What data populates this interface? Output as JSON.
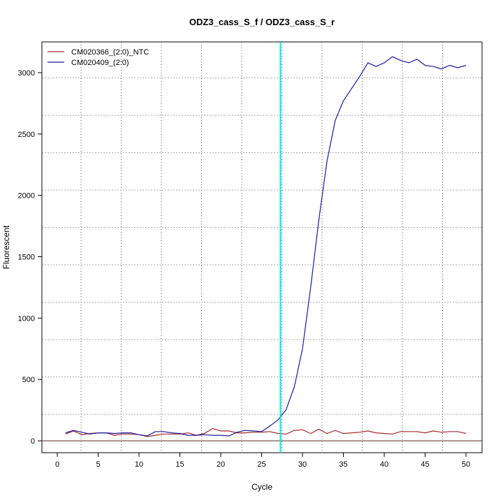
{
  "chart_data": {
    "type": "line",
    "title": "ODZ3_cass_S_f / ODZ3_cass_S_r",
    "xlabel": "Cycle",
    "ylabel": "Fluorescent",
    "xlim": [
      -2,
      52
    ],
    "ylim": [
      -90,
      3240
    ],
    "xticks": [
      0,
      5,
      10,
      15,
      20,
      25,
      30,
      35,
      40,
      45,
      50
    ],
    "yticks": [
      0,
      500,
      1000,
      1500,
      2000,
      2500,
      3000
    ],
    "grid": true,
    "legend_position": "top-left",
    "threshold_cycle": 27.3,
    "threshold_color": "#00e5ee",
    "baseline_value": 0,
    "x": [
      1,
      2,
      3,
      4,
      5,
      6,
      7,
      8,
      9,
      10,
      11,
      12,
      13,
      14,
      15,
      16,
      17,
      18,
      19,
      20,
      21,
      22,
      23,
      24,
      25,
      26,
      27,
      28,
      29,
      30,
      31,
      32,
      33,
      34,
      35,
      36,
      37,
      38,
      39,
      40,
      41,
      42,
      43,
      44,
      45,
      46,
      47,
      48,
      49,
      50
    ],
    "series": [
      {
        "name": "CM020366_(2:0)_NTC",
        "color": "#a52a2a",
        "values": [
          55,
          80,
          50,
          60,
          65,
          65,
          45,
          55,
          55,
          50,
          35,
          45,
          55,
          55,
          55,
          65,
          45,
          60,
          100,
          80,
          80,
          65,
          65,
          70,
          70,
          75,
          60,
          55,
          85,
          90,
          60,
          95,
          60,
          85,
          60,
          65,
          70,
          80,
          65,
          60,
          55,
          75,
          75,
          75,
          65,
          80,
          70,
          75,
          75,
          60
        ]
      },
      {
        "name": "CM020409_(2:0)",
        "color": "#1a1aa0",
        "values": [
          65,
          85,
          70,
          55,
          65,
          65,
          60,
          65,
          65,
          50,
          40,
          75,
          75,
          65,
          60,
          45,
          45,
          50,
          45,
          45,
          40,
          70,
          85,
          80,
          75,
          120,
          170,
          255,
          440,
          750,
          1250,
          1800,
          2280,
          2610,
          2770,
          2870,
          2970,
          3080,
          3050,
          3080,
          3130,
          3100,
          3080,
          3110,
          3060,
          3050,
          3030,
          3060,
          3040,
          3060
        ]
      }
    ]
  }
}
